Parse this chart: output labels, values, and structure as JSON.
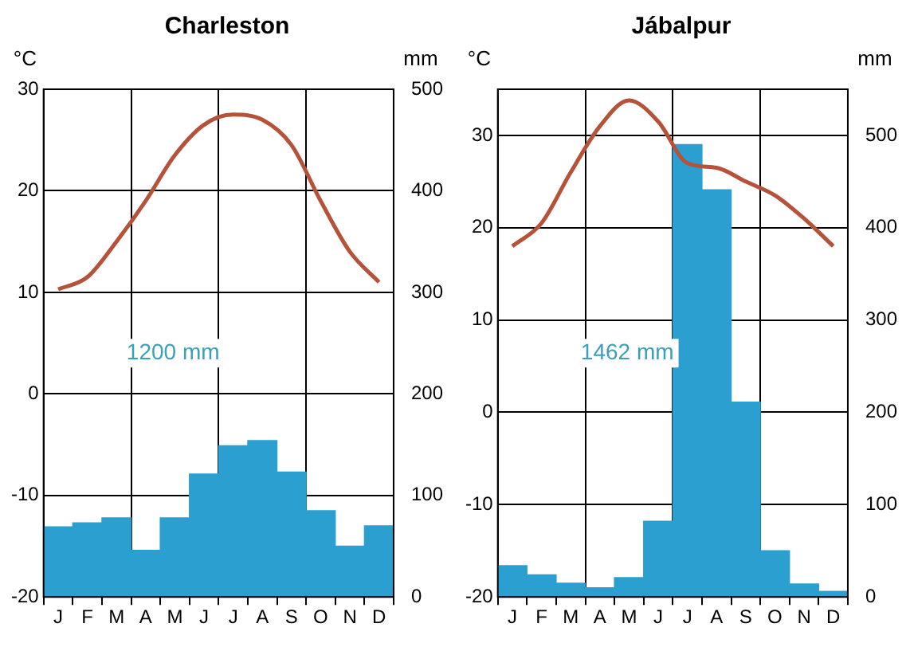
{
  "chart_data": [
    {
      "type": "bar",
      "title": "Charleston",
      "ylabel": "°C",
      "y2label": "mm",
      "categories": [
        "J",
        "F",
        "M",
        "A",
        "M",
        "J",
        "J",
        "A",
        "S",
        "O",
        "N",
        "D"
      ],
      "series": [
        {
          "axis": "y2",
          "color": "#2a9fd0",
          "values": [
            69,
            73,
            78,
            46,
            78,
            121,
            149,
            154,
            123,
            85,
            50,
            70
          ]
        },
        {
          "type": "line",
          "axis": "y",
          "color": "#b5533a",
          "values": [
            10.3,
            11.5,
            15,
            19,
            23.5,
            26.5,
            27.5,
            27,
            24.5,
            19,
            14,
            11
          ]
        }
      ],
      "ylim": [
        -20,
        30
      ],
      "yticks": [
        -20,
        -10,
        0,
        10,
        20,
        30
      ],
      "y2lim": [
        0,
        500
      ],
      "y2ticks": [
        0,
        100,
        200,
        300,
        400,
        500
      ],
      "annotations": [
        "1200 mm"
      ],
      "grid": true,
      "legend": false,
      "marker": "none"
    },
    {
      "type": "bar",
      "title": "Jábalpur",
      "ylabel": "°C",
      "y2label": "mm",
      "categories": [
        "J",
        "F",
        "M",
        "A",
        "M",
        "J",
        "J",
        "A",
        "S",
        "O",
        "N",
        "D"
      ],
      "series": [
        {
          "axis": "y2",
          "color": "#2a9fd0",
          "values": [
            34,
            24,
            15,
            10,
            21,
            82,
            490,
            441,
            211,
            50,
            14,
            6
          ]
        },
        {
          "type": "line",
          "axis": "y",
          "color": "#b5533a",
          "values": [
            18,
            20.5,
            26,
            31,
            33.8,
            31.5,
            27,
            26.5,
            25,
            23.5,
            21,
            18
          ]
        }
      ],
      "ylim": [
        -20,
        35
      ],
      "yticks": [
        -20,
        -10,
        0,
        10,
        20,
        30
      ],
      "y2lim": [
        0,
        550
      ],
      "y2ticks": [
        0,
        100,
        200,
        300,
        400,
        500
      ],
      "annotations": [
        "1462 mm"
      ],
      "grid": true,
      "legend": false,
      "marker": "none"
    }
  ]
}
